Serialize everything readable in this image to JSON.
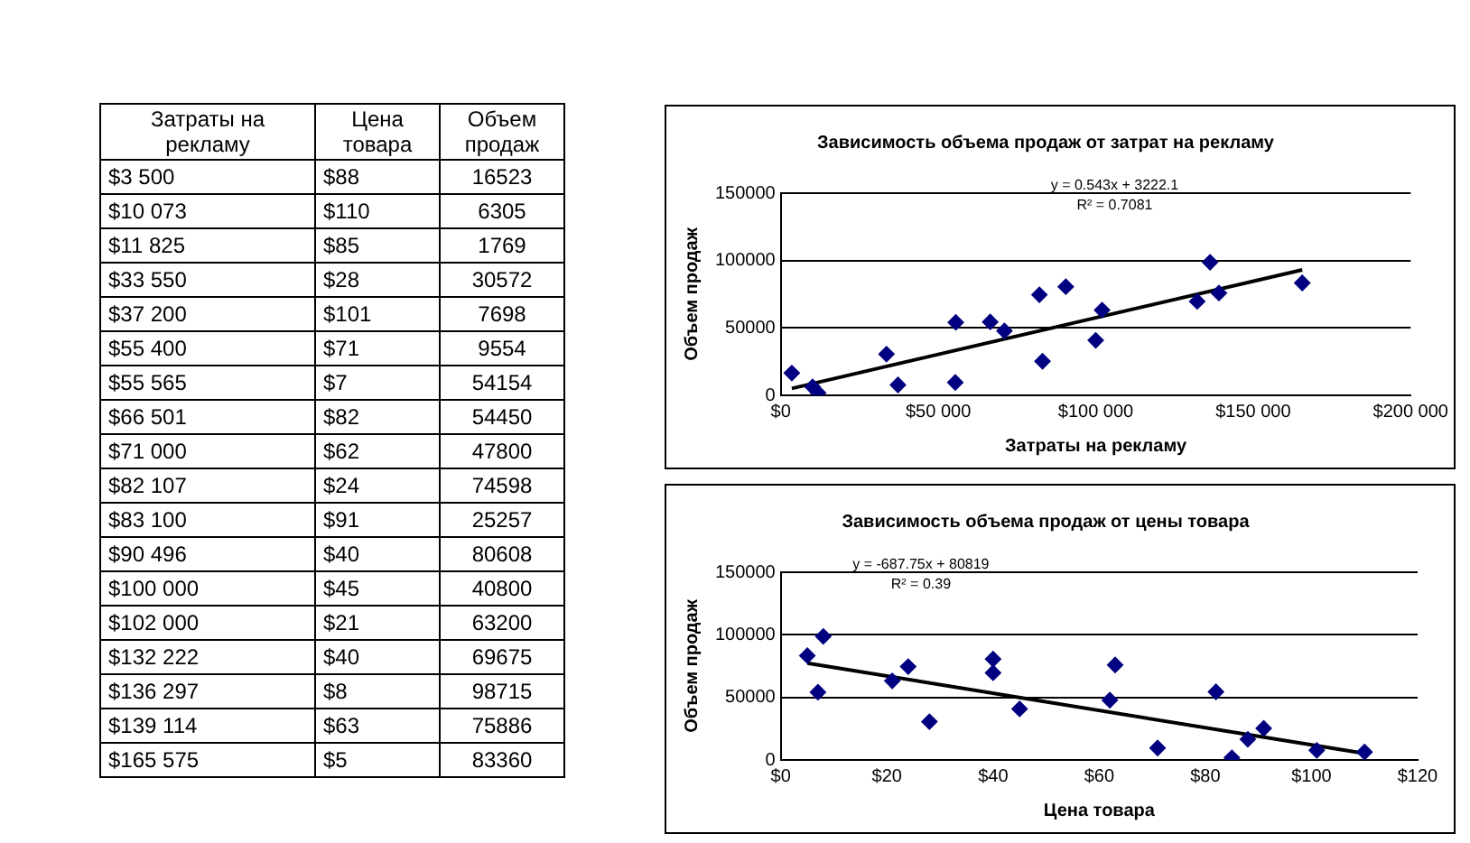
{
  "chart_data": [
    {
      "type": "other",
      "categories": [
        "Затраты на рекламу",
        "Цена товара",
        "Объем продаж"
      ],
      "cell_labels": [
        [
          "$3 500",
          "$88",
          "16523"
        ],
        [
          "$10 073",
          "$110",
          "6305"
        ],
        [
          "$11 825",
          "$85",
          "1769"
        ],
        [
          "$33 550",
          "$28",
          "30572"
        ],
        [
          "$37 200",
          "$101",
          "7698"
        ],
        [
          "$55 400",
          "$71",
          "9554"
        ],
        [
          "$55 565",
          "$7",
          "54154"
        ],
        [
          "$66 501",
          "$82",
          "54450"
        ],
        [
          "$71 000",
          "$62",
          "47800"
        ],
        [
          "$82 107",
          "$24",
          "74598"
        ],
        [
          "$83 100",
          "$91",
          "25257"
        ],
        [
          "$90 496",
          "$40",
          "80608"
        ],
        [
          "$100 000",
          "$45",
          "40800"
        ],
        [
          "$102 000",
          "$21",
          "63200"
        ],
        [
          "$132 222",
          "$40",
          "69675"
        ],
        [
          "$136 297",
          "$8",
          "98715"
        ],
        [
          "$139 114",
          "$63",
          "75886"
        ],
        [
          "$165 575",
          "$5",
          "83360"
        ]
      ]
    },
    {
      "type": "scatter",
      "title": "Зависимость объема продаж от затрат на рекламу",
      "xlabel": "Затраты на рекламу",
      "ylabel": "Объем продаж",
      "xlim": [
        0,
        200000
      ],
      "xticks": [
        {
          "value": 0,
          "label": "$0"
        },
        {
          "value": 50000,
          "label": "$50 000"
        },
        {
          "value": 100000,
          "label": "$100 000"
        },
        {
          "value": 150000,
          "label": "$150 000"
        },
        {
          "value": 200000,
          "label": "$200 000"
        }
      ],
      "ylim": [
        0,
        150000
      ],
      "yticks": [
        0,
        50000,
        100000,
        150000
      ],
      "grid": "y",
      "marker": "diamond",
      "annotations": [
        "y = 0.543x + 3222.1",
        "R² = 0.7081"
      ],
      "series": [
        {
          "color": "#000080",
          "x": [
            3500,
            10073,
            11825,
            33550,
            37200,
            55400,
            55565,
            66501,
            71000,
            82107,
            83100,
            90496,
            100000,
            102000,
            132222,
            136297,
            139114,
            165575
          ],
          "values": [
            16523,
            6305,
            1769,
            30572,
            7698,
            9554,
            54154,
            54450,
            47800,
            74598,
            25257,
            80608,
            40800,
            63200,
            69675,
            98715,
            75886,
            83360
          ]
        },
        {
          "type": "line",
          "marker": "none",
          "color": "#000000",
          "x": [
            3500,
            165575
          ],
          "values": [
            5123,
            93129
          ]
        }
      ]
    },
    {
      "type": "scatter",
      "title": "Зависимость объема продаж от цены товара",
      "xlabel": "Цена товара",
      "ylabel": "Объем продаж",
      "xlim": [
        0,
        120
      ],
      "xticks": [
        {
          "value": 0,
          "label": "$0"
        },
        {
          "value": 20,
          "label": "$20"
        },
        {
          "value": 40,
          "label": "$40"
        },
        {
          "value": 60,
          "label": "$60"
        },
        {
          "value": 80,
          "label": "$80"
        },
        {
          "value": 100,
          "label": "$100"
        },
        {
          "value": 120,
          "label": "$120"
        }
      ],
      "ylim": [
        0,
        150000
      ],
      "yticks": [
        0,
        50000,
        100000,
        150000
      ],
      "grid": "y",
      "marker": "diamond",
      "annotations": [
        "y = -687.75x + 80819",
        "R² = 0.39"
      ],
      "series": [
        {
          "color": "#000080",
          "x": [
            88,
            110,
            85,
            28,
            101,
            71,
            7,
            82,
            62,
            24,
            91,
            40,
            45,
            21,
            40,
            8,
            63,
            5
          ],
          "values": [
            16523,
            6305,
            1769,
            30572,
            7698,
            9554,
            54154,
            54450,
            47800,
            74598,
            25257,
            80608,
            40800,
            63200,
            69675,
            98715,
            75886,
            83360
          ]
        },
        {
          "type": "line",
          "marker": "none",
          "color": "#000000",
          "x": [
            5,
            110
          ],
          "values": [
            77380,
            5166
          ]
        }
      ]
    }
  ]
}
